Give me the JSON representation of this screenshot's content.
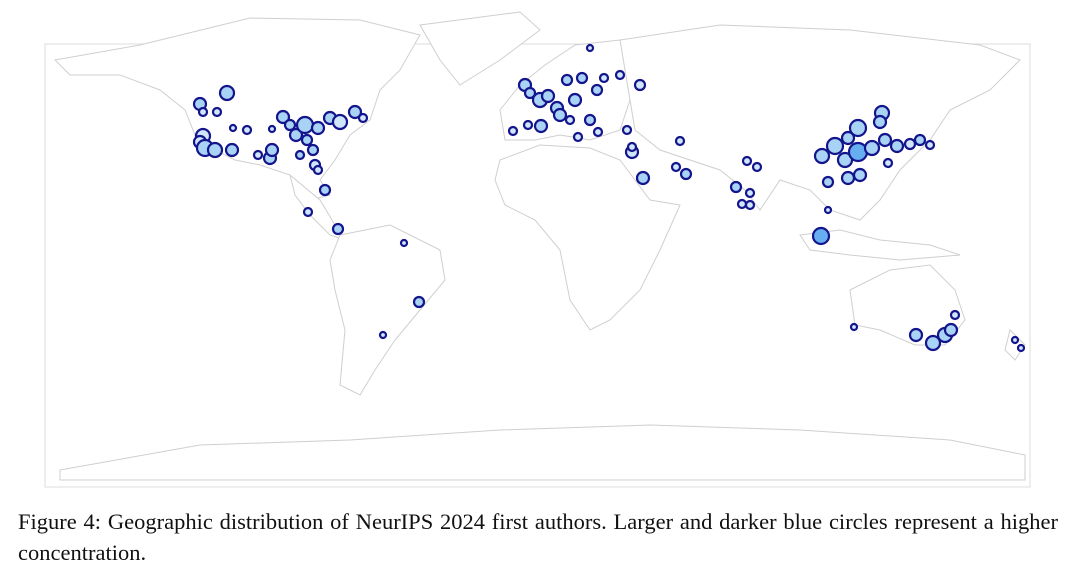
{
  "figure": {
    "caption": "Figure 4: Geographic distribution of NeurIPS 2024 first authors. Larger and darker blue circles represent a higher concentration."
  }
}
